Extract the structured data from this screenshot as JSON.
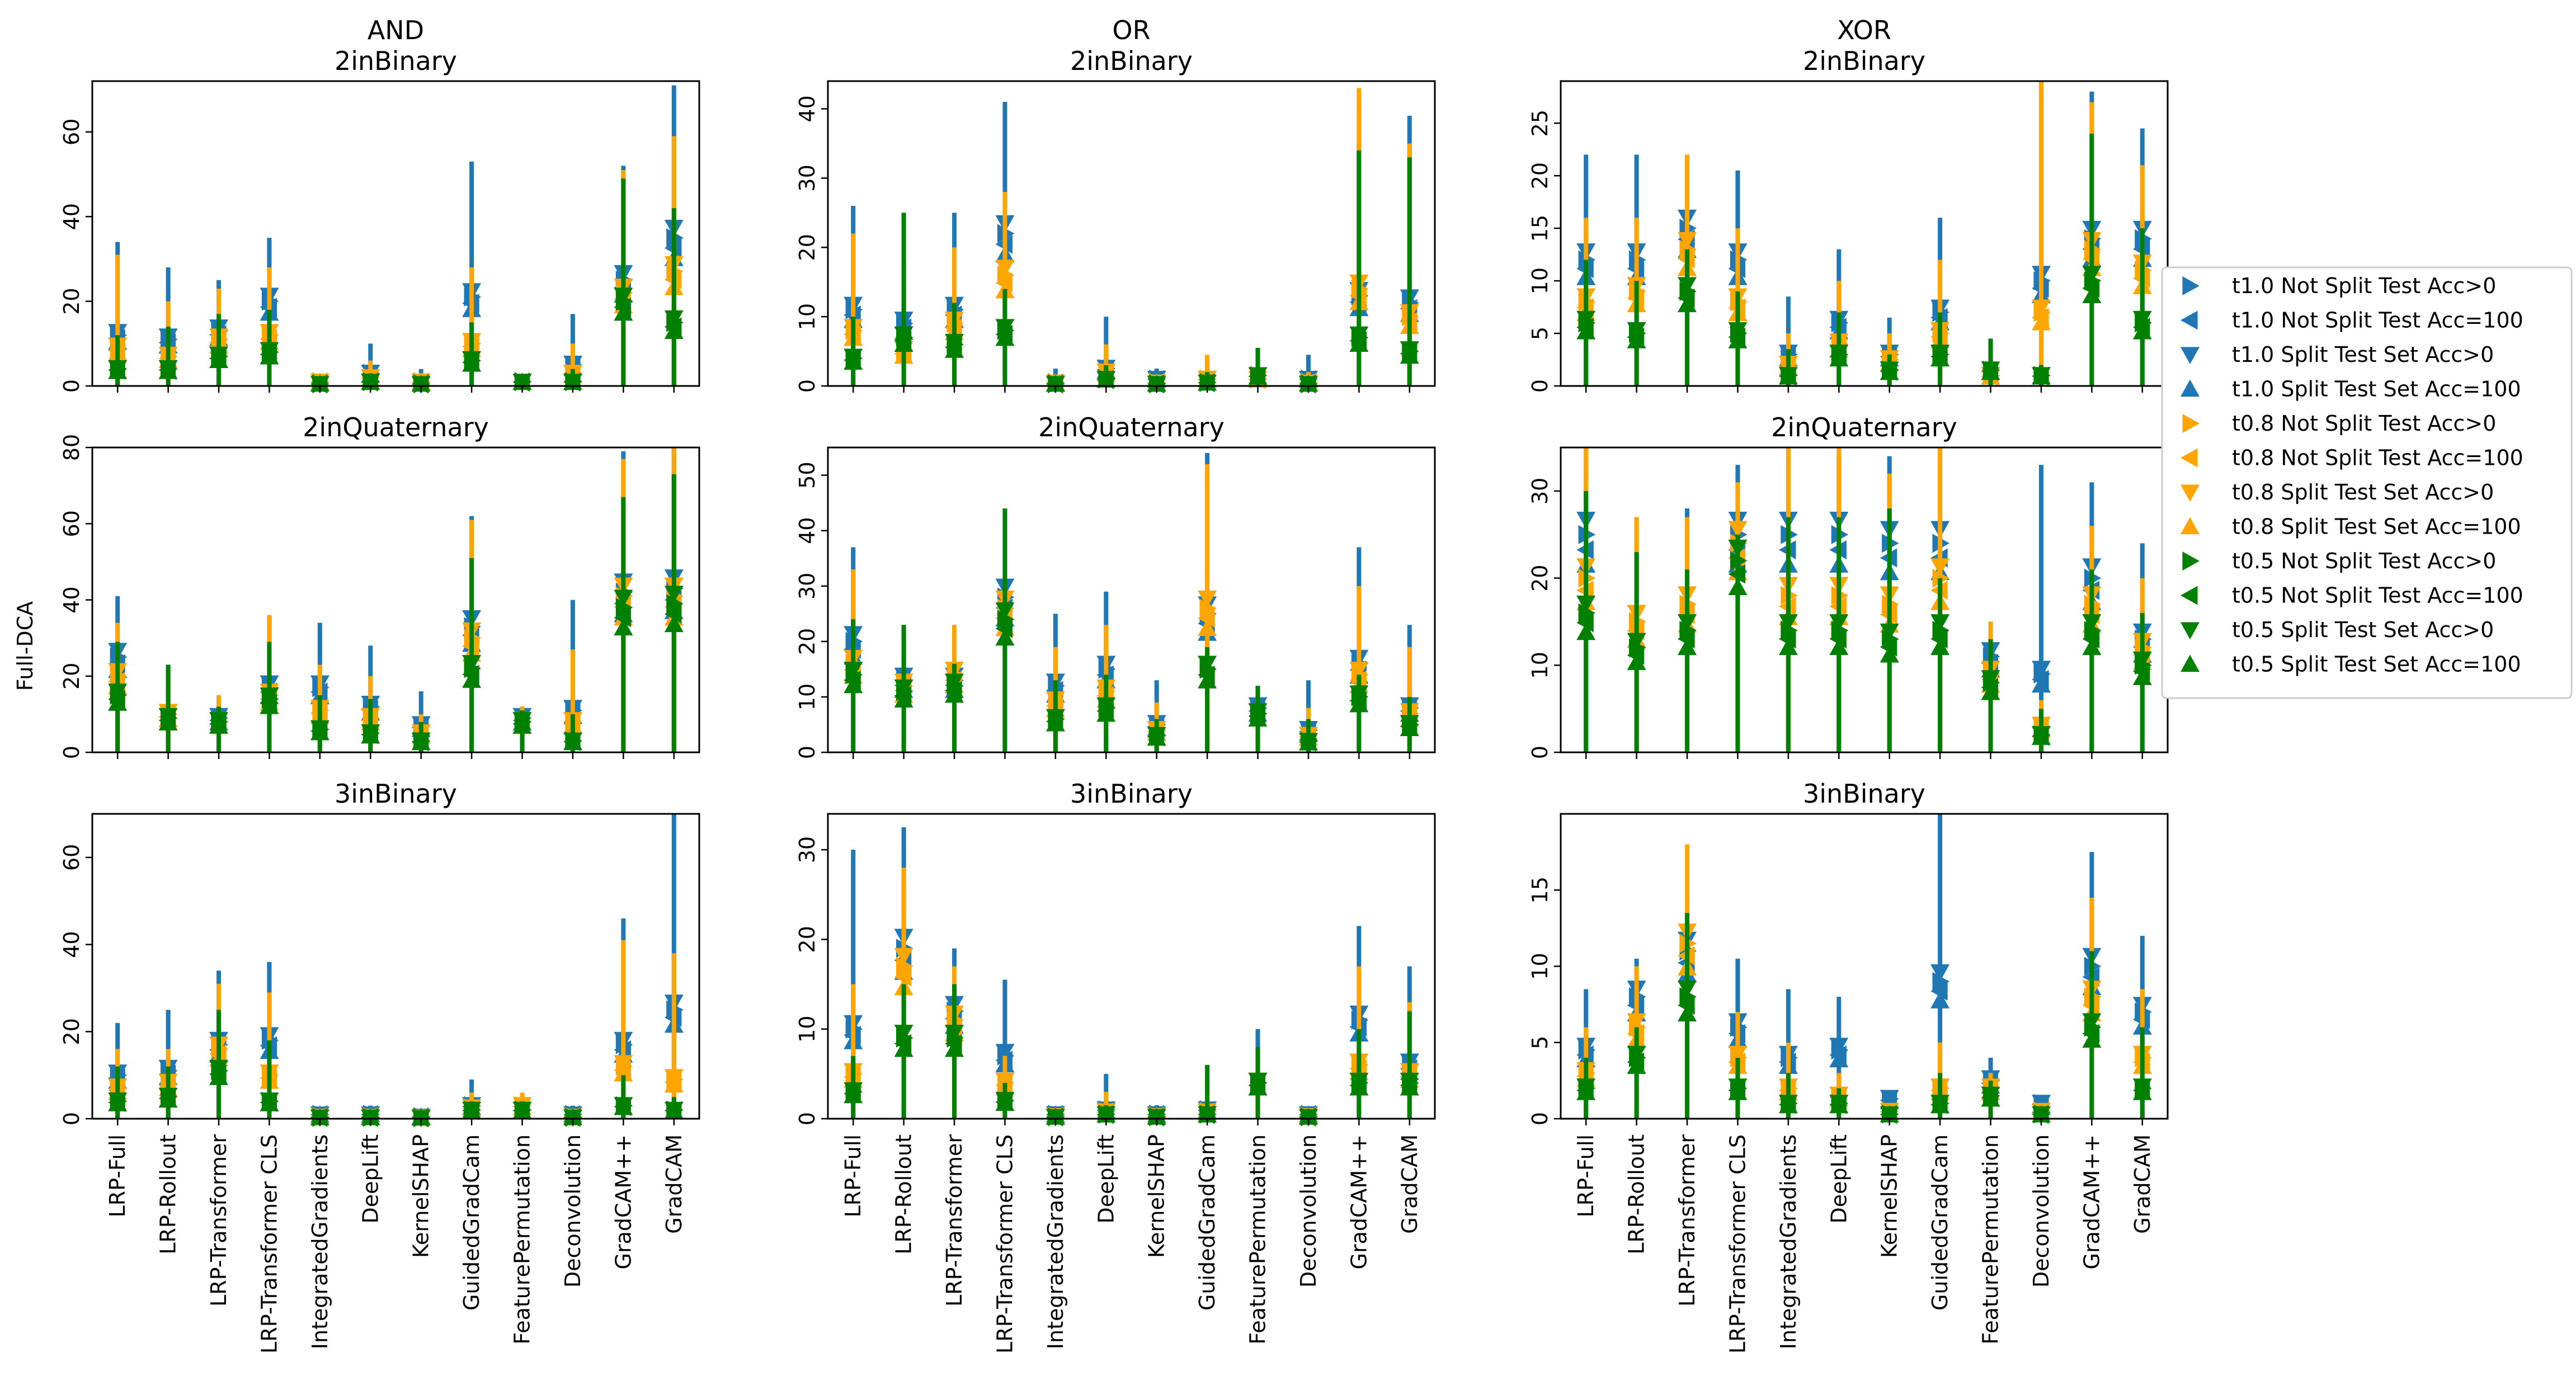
{
  "figure": {
    "ylabel": "Full-DCA",
    "column_titles": [
      "AND",
      "OR",
      "XOR"
    ],
    "row_titles": [
      "2inBinary",
      "2inQuaternary",
      "3inBinary"
    ],
    "methods": [
      "LRP-Full",
      "LRP-Rollout",
      "LRP-Transformer",
      "LRP-Transformer CLS",
      "IntegratedGradients",
      "DeepLift",
      "KernelSHAP",
      "GuidedGradCam",
      "FeaturePermutation",
      "Deconvolution",
      "GradCAM++",
      "GradCAM"
    ],
    "colors": {
      "t1.0": "#1f77b4",
      "t0.8": "#ffa500",
      "t0.5": "#008000"
    },
    "legend": [
      {
        "label": "t1.0 Not Split Test Acc>0",
        "color": "#1f77b4",
        "marker": "triangle-right"
      },
      {
        "label": "t1.0 Not Split Test Acc=100",
        "color": "#1f77b4",
        "marker": "triangle-left"
      },
      {
        "label": "t1.0 Split Test Set Acc>0",
        "color": "#1f77b4",
        "marker": "triangle-down"
      },
      {
        "label": "t1.0 Split Test Set Acc=100",
        "color": "#1f77b4",
        "marker": "triangle-up"
      },
      {
        "label": "t0.8 Not Split Test Acc>0",
        "color": "#ffa500",
        "marker": "triangle-right"
      },
      {
        "label": "t0.8 Not Split Test Acc=100",
        "color": "#ffa500",
        "marker": "triangle-left"
      },
      {
        "label": "t0.8 Split Test Set Acc>0",
        "color": "#ffa500",
        "marker": "triangle-down"
      },
      {
        "label": "t0.8 Split Test Set Acc=100",
        "color": "#ffa500",
        "marker": "triangle-up"
      },
      {
        "label": "t0.5 Not Split Test Acc>0",
        "color": "#008000",
        "marker": "triangle-right"
      },
      {
        "label": "t0.5 Not Split Test Acc=100",
        "color": "#008000",
        "marker": "triangle-left"
      },
      {
        "label": "t0.5 Split Test Set Acc>0",
        "color": "#008000",
        "marker": "triangle-down"
      },
      {
        "label": "t0.5 Split Test Set Acc=100",
        "color": "#008000",
        "marker": "triangle-up"
      }
    ]
  },
  "chart_data": [
    {
      "type": "errorbar-scatter",
      "title": "AND\n2inBinary",
      "ylim": [
        0,
        72
      ],
      "yticks": [
        0,
        20,
        40,
        60
      ],
      "series": [
        {
          "temp": "t1.0",
          "values": [
            12,
            11,
            13,
            20,
            1,
            3,
            1,
            21,
            1,
            5,
            25,
            35
          ],
          "upper": [
            34,
            28,
            25,
            35,
            1.5,
            10,
            4,
            53,
            2,
            17,
            52,
            71
          ]
        },
        {
          "temp": "t0.8",
          "values": [
            9,
            7,
            11,
            12,
            1,
            2,
            1,
            10,
            1,
            3,
            22,
            27
          ],
          "upper": [
            31,
            20,
            23,
            28,
            1.5,
            6,
            3,
            28,
            2,
            10,
            51,
            59
          ]
        },
        {
          "temp": "t0.5",
          "values": [
            4,
            4,
            7,
            8,
            0.5,
            1,
            0.5,
            6,
            1,
            1,
            20,
            15
          ],
          "upper": [
            12,
            14,
            17,
            18,
            1,
            3,
            1.5,
            15,
            1.5,
            4,
            49,
            42
          ]
        }
      ]
    },
    {
      "type": "errorbar-scatter",
      "title": "OR\n2inBinary",
      "ylim": [
        0,
        44
      ],
      "yticks": [
        0,
        10,
        20,
        30,
        40
      ],
      "series": [
        {
          "temp": "t1.0",
          "values": [
            11,
            9,
            11,
            22,
            0.5,
            2.5,
            1,
            1,
            1.5,
            1,
            13,
            12
          ],
          "upper": [
            26,
            18,
            25,
            41,
            2.5,
            10,
            2.5,
            4,
            4,
            4.5,
            40,
            39
          ]
        },
        {
          "temp": "t0.8",
          "values": [
            8,
            5,
            9,
            16,
            0.5,
            2,
            0.5,
            1,
            1,
            0.5,
            14,
            10
          ],
          "upper": [
            22,
            14,
            20,
            28,
            1.5,
            6,
            1.5,
            4.5,
            3,
            2,
            43,
            35
          ]
        },
        {
          "temp": "t0.5",
          "values": [
            4,
            7,
            6,
            8,
            0.3,
            1,
            0.3,
            0.5,
            1.5,
            0.3,
            7,
            5
          ],
          "upper": [
            10,
            25,
            12,
            14,
            1,
            3,
            1,
            2,
            5.5,
            1,
            34,
            33
          ]
        }
      ]
    },
    {
      "type": "errorbar-scatter",
      "title": "XOR\n2inBinary",
      "ylim": [
        0,
        29
      ],
      "yticks": [
        0,
        5,
        10,
        15,
        20,
        25
      ],
      "series": [
        {
          "temp": "t1.0",
          "values": [
            12,
            12,
            15,
            12,
            3,
            6,
            3,
            7,
            1,
            10,
            14,
            14
          ],
          "upper": [
            22,
            22,
            22,
            20.5,
            8.5,
            13,
            6.5,
            16,
            4.5,
            30,
            28,
            24.5
          ]
        },
        {
          "temp": "t0.8",
          "values": [
            8,
            9,
            13,
            8,
            2,
            4,
            2.5,
            5,
            1,
            7,
            13,
            11
          ],
          "upper": [
            16,
            16,
            22,
            15,
            5,
            10,
            5,
            12,
            3,
            30,
            27,
            21
          ]
        },
        {
          "temp": "t0.5",
          "values": [
            6,
            5,
            9,
            5,
            1,
            3,
            1.5,
            3,
            1.5,
            1,
            10,
            6
          ],
          "upper": [
            12,
            10,
            13,
            9,
            3.5,
            7,
            3,
            7,
            4.5,
            2,
            24,
            15
          ]
        }
      ]
    },
    {
      "type": "errorbar-scatter",
      "title": "2inQuaternary",
      "ylim": [
        0,
        80
      ],
      "yticks": [
        0,
        20,
        40,
        60,
        80
      ],
      "series": [
        {
          "temp": "t1.0",
          "values": [
            25,
            10,
            9,
            17,
            17,
            12,
            7,
            33,
            9,
            11,
            42,
            43
          ],
          "upper": [
            41,
            23,
            15,
            36,
            34,
            28,
            16,
            62,
            12,
            40,
            79,
            80
          ]
        },
        {
          "temp": "t0.8",
          "values": [
            20,
            10,
            8,
            15,
            11,
            9,
            5,
            30,
            8,
            8,
            41,
            41
          ],
          "upper": [
            34,
            20,
            15,
            36,
            23,
            20,
            10,
            61,
            12,
            27,
            77,
            80
          ]
        },
        {
          "temp": "t0.5",
          "values": [
            15,
            9,
            8,
            14,
            6,
            5,
            3,
            22,
            8,
            3,
            38,
            39
          ],
          "upper": [
            29,
            23,
            12,
            29,
            15,
            14,
            8,
            51,
            11,
            10,
            67,
            73
          ]
        }
      ]
    },
    {
      "type": "errorbar-scatter",
      "title": "2inQuaternary",
      "ylim": [
        0,
        55
      ],
      "yticks": [
        0,
        10,
        20,
        30,
        40,
        50
      ],
      "series": [
        {
          "temp": "t1.0",
          "values": [
            20,
            13,
            13,
            28,
            12,
            15,
            5,
            25,
            8,
            4,
            16,
            8
          ],
          "upper": [
            37,
            22,
            22,
            43,
            25,
            29,
            13,
            54,
            12,
            13,
            37,
            23
          ]
        },
        {
          "temp": "t0.8",
          "values": [
            16,
            12,
            14,
            26,
            9,
            11,
            4,
            26,
            7,
            3,
            14,
            7
          ],
          "upper": [
            33,
            20,
            23,
            30,
            19,
            23,
            9,
            52,
            10,
            8,
            30,
            19
          ]
        },
        {
          "temp": "t0.5",
          "values": [
            14,
            11,
            12,
            24,
            6,
            8,
            3,
            15,
            7,
            2,
            10,
            5
          ],
          "upper": [
            24,
            23,
            16,
            44,
            13,
            14,
            6,
            19,
            12,
            6,
            14,
            10
          ]
        }
      ]
    },
    {
      "type": "errorbar-scatter",
      "title": "2inQuaternary",
      "ylim": [
        0,
        35
      ],
      "yticks": [
        0,
        10,
        20,
        30
      ],
      "series": [
        {
          "temp": "t1.0",
          "values": [
            25,
            15,
            14,
            25,
            25,
            25,
            24,
            24,
            11,
            9,
            20,
            13
          ],
          "upper": [
            35,
            27,
            28,
            33,
            35,
            34,
            34,
            35,
            15,
            33,
            31,
            24
          ]
        },
        {
          "temp": "t0.8",
          "values": [
            20,
            15,
            17,
            24,
            18,
            18,
            17,
            20,
            9,
            3,
            17,
            12
          ],
          "upper": [
            35,
            27,
            27,
            31,
            35,
            35,
            32,
            35,
            15,
            6,
            26,
            20
          ]
        },
        {
          "temp": "t0.5",
          "values": [
            16,
            12,
            14,
            22,
            14,
            14,
            13,
            14,
            8,
            2,
            14,
            10
          ],
          "upper": [
            30,
            23,
            21,
            25,
            27,
            27,
            28,
            20,
            13,
            5,
            21,
            16
          ]
        }
      ]
    },
    {
      "type": "errorbar-scatter",
      "title": "3inBinary",
      "ylim": [
        0,
        70
      ],
      "yticks": [
        0,
        20,
        40,
        60
      ],
      "series": [
        {
          "temp": "t1.0",
          "values": [
            10,
            11,
            17,
            18,
            1,
            1,
            0.5,
            3,
            2,
            1,
            17,
            25
          ],
          "upper": [
            22,
            25,
            34,
            36,
            1.5,
            3,
            1,
            9,
            4,
            3,
            46,
            70
          ]
        },
        {
          "temp": "t0.8",
          "values": [
            7,
            8,
            16,
            10,
            0.5,
            0.5,
            0.3,
            2.5,
            3,
            0.5,
            12,
            9
          ],
          "upper": [
            16,
            16,
            31,
            29,
            1,
            1.5,
            0.5,
            6,
            6,
            1.5,
            41,
            38
          ]
        },
        {
          "temp": "t0.5",
          "values": [
            4,
            5,
            11,
            4,
            0.3,
            0.3,
            0.2,
            2,
            2,
            0.3,
            3,
            2
          ],
          "upper": [
            12,
            12,
            25,
            18,
            0.5,
            0.5,
            0.5,
            4,
            4,
            1,
            10,
            5
          ]
        }
      ]
    },
    {
      "type": "errorbar-scatter",
      "title": "3inBinary",
      "ylim": [
        0,
        34
      ],
      "yticks": [
        0,
        10,
        20,
        30
      ],
      "series": [
        {
          "temp": "t1.0",
          "values": [
            10,
            19,
            12,
            7,
            0.5,
            1,
            0.5,
            1,
            4,
            0.5,
            11,
            6
          ],
          "upper": [
            30,
            32.5,
            19,
            15.5,
            1,
            5,
            1.5,
            6,
            10,
            1,
            21.5,
            17
          ]
        },
        {
          "temp": "t0.8",
          "values": [
            5,
            17,
            11,
            4,
            0.3,
            0.8,
            0.3,
            0.8,
            4,
            0.3,
            6,
            5
          ],
          "upper": [
            15,
            28,
            17,
            7,
            0.5,
            3,
            1,
            4,
            8,
            0.8,
            17,
            13
          ]
        },
        {
          "temp": "t0.5",
          "values": [
            3,
            9,
            9,
            2,
            0.2,
            0.5,
            0.2,
            0.5,
            4,
            0.2,
            4,
            4
          ],
          "upper": [
            7,
            15,
            15,
            4,
            0.4,
            1.5,
            0.5,
            6,
            8,
            0.5,
            10,
            12
          ]
        }
      ]
    },
    {
      "type": "errorbar-scatter",
      "title": "3inBinary",
      "ylim": [
        0,
        20
      ],
      "yticks": [
        0,
        5,
        10,
        15
      ],
      "series": [
        {
          "temp": "t1.0",
          "values": [
            4.5,
            8,
            11,
            6,
            4,
            4.5,
            1.3,
            9,
            2.5,
            1,
            10,
            7
          ],
          "upper": [
            8.5,
            10.5,
            13,
            10.5,
            8.5,
            8,
            1.5,
            20,
            4,
            1.5,
            17.5,
            12
          ]
        },
        {
          "temp": "t0.8",
          "values": [
            3,
            6,
            11.5,
            4,
            2,
            1.5,
            0.5,
            2,
            2,
            0.5,
            8,
            4
          ],
          "upper": [
            6,
            10,
            18,
            7,
            5,
            3,
            1,
            5,
            3,
            1,
            14.5,
            8.5
          ]
        },
        {
          "temp": "t0.5",
          "values": [
            2,
            4,
            8,
            2,
            1,
            1,
            0.3,
            1,
            1.5,
            0.3,
            6,
            2
          ],
          "upper": [
            4,
            6,
            13.5,
            4,
            3,
            2,
            0.5,
            3,
            2.5,
            0.5,
            11,
            6
          ]
        }
      ]
    }
  ]
}
